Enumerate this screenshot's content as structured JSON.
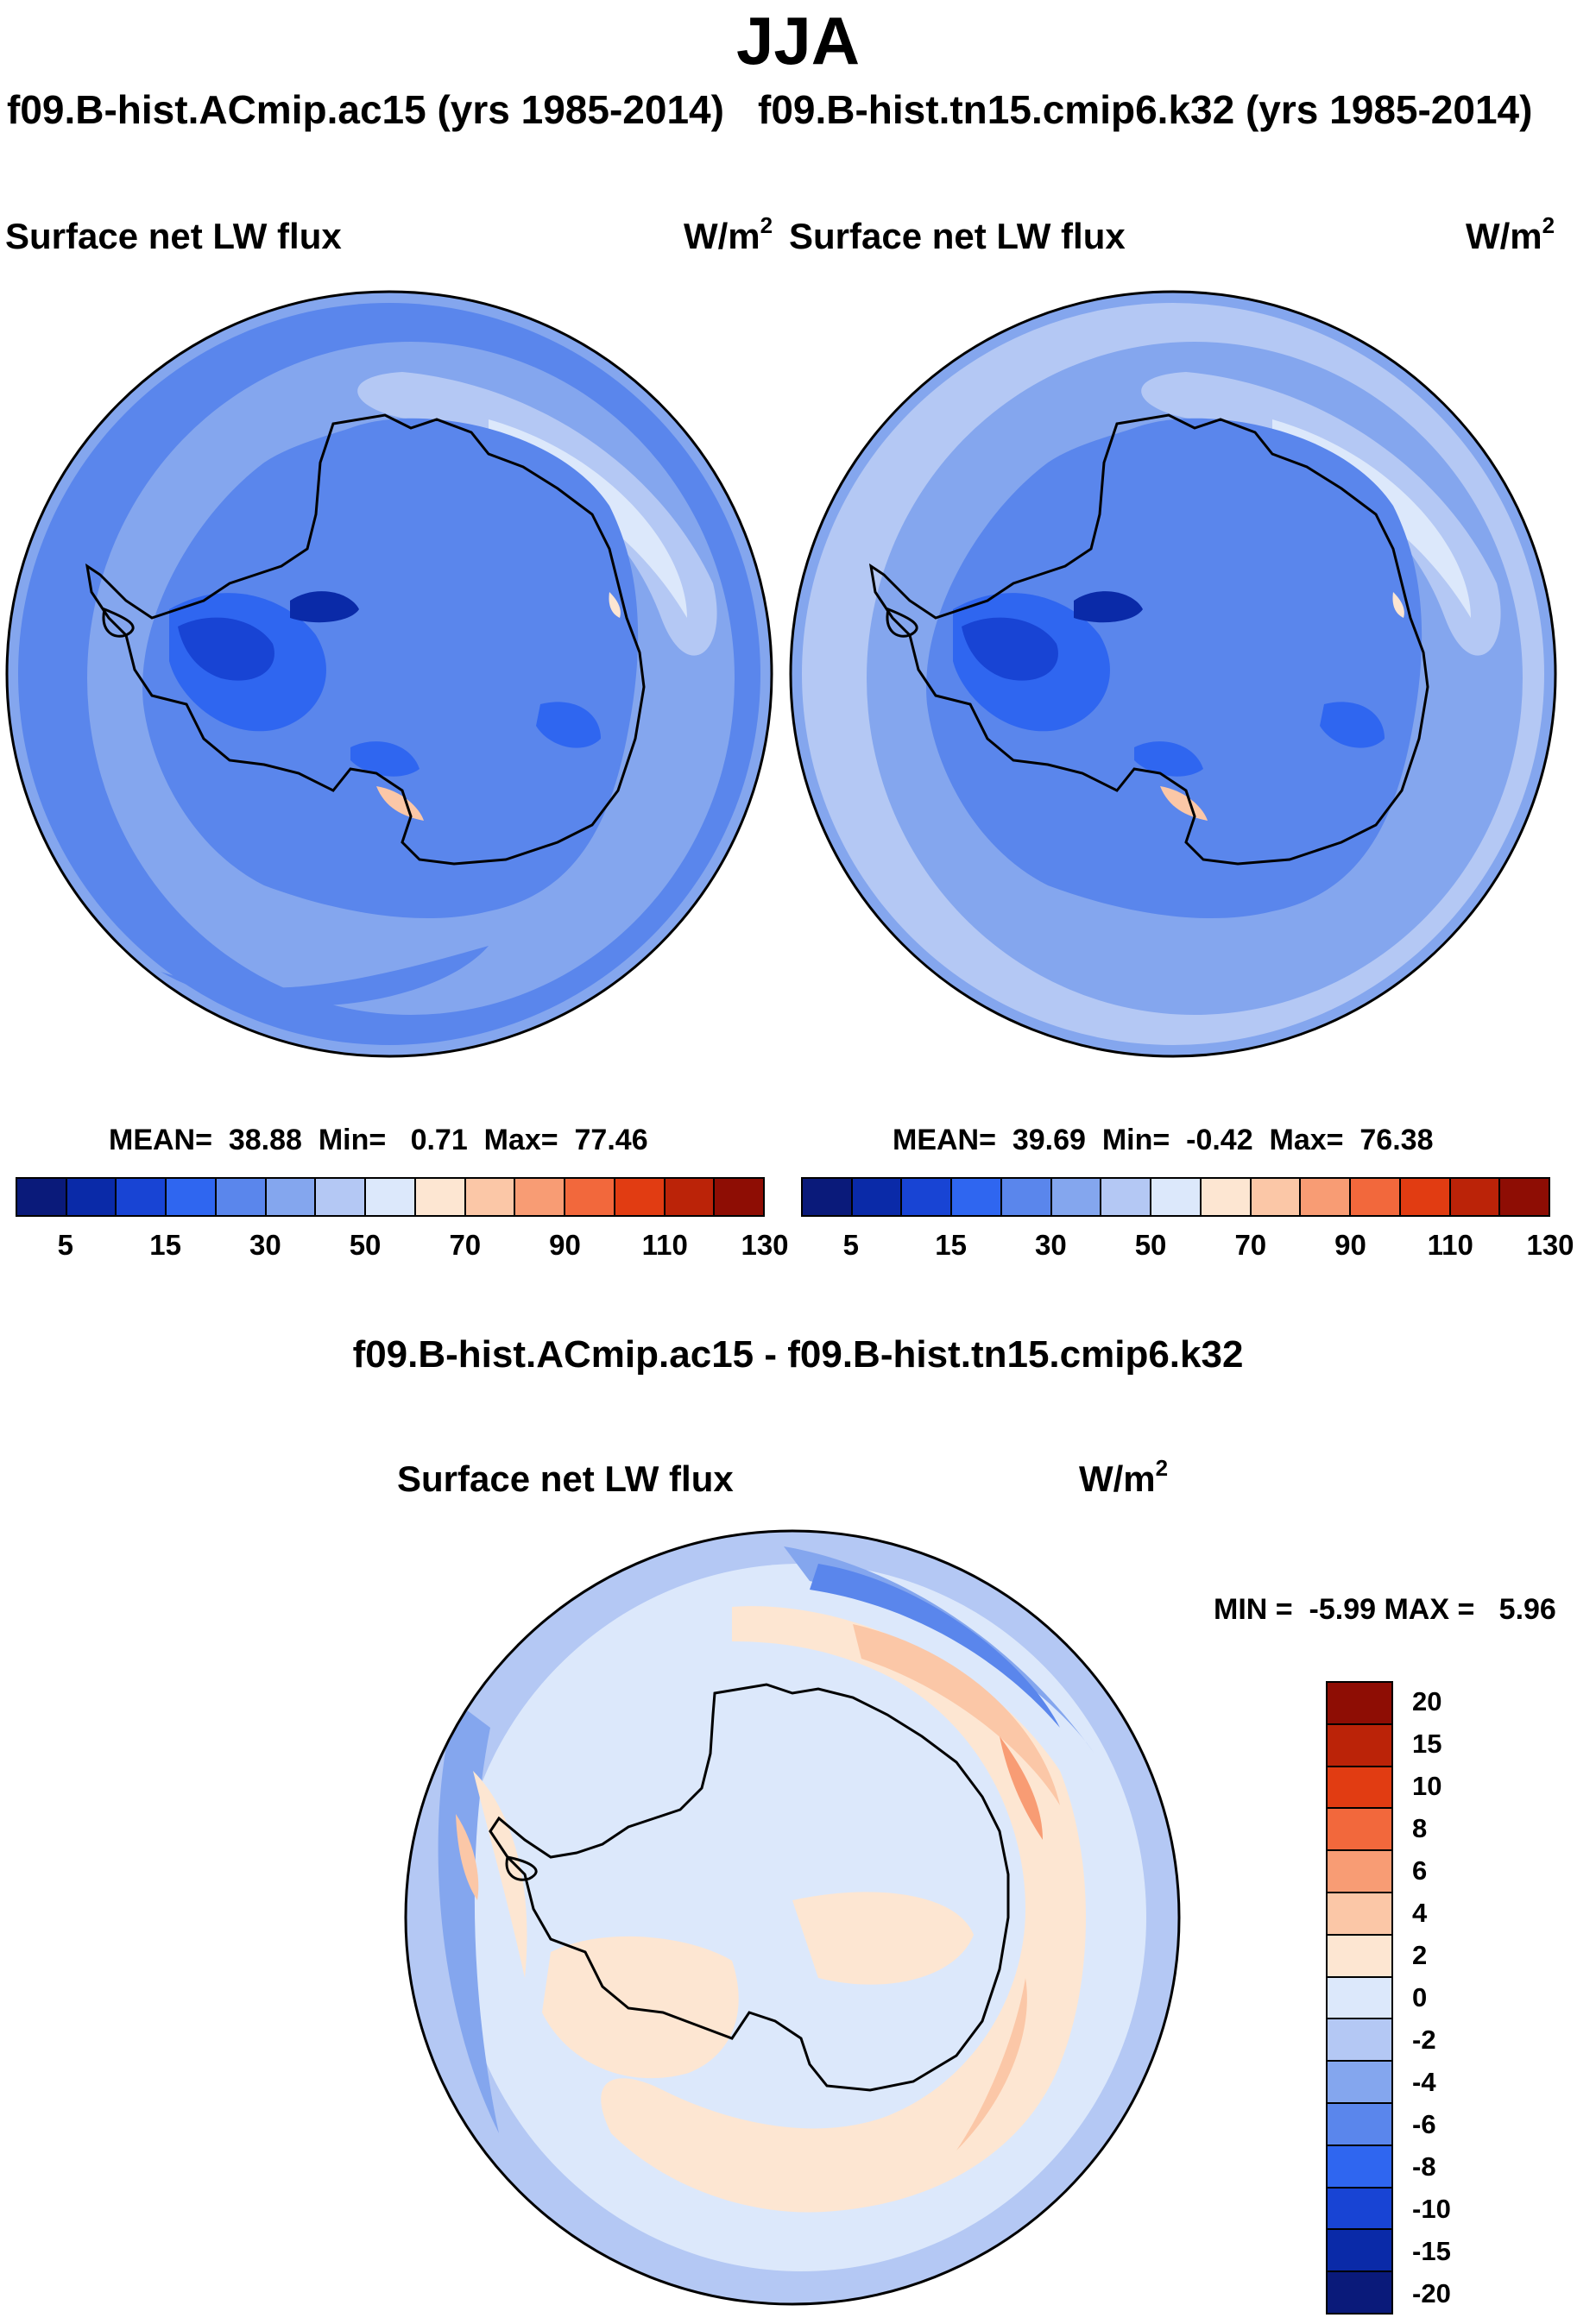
{
  "title": "JJA",
  "panels": [
    {
      "case": "f09.B-hist.ACmip.ac15 (yrs 1985-2014)",
      "variable": "Surface net LW flux",
      "units": "W/m",
      "units_exp": "2",
      "stats": "MEAN=  38.88  Min=   0.71  Max=  77.46",
      "map_name": "antarctic-lw-flux-map-ac15"
    },
    {
      "case": "f09.B-hist.tn15.cmip6.k32 (yrs 1985-2014)",
      "variable": "Surface net LW flux",
      "units": "W/m",
      "units_exp": "2",
      "stats": "MEAN=  39.69  Min=  -0.42  Max=  76.38",
      "map_name": "antarctic-lw-flux-map-k32"
    }
  ],
  "field_colorbar": {
    "colors": [
      "#0a1a7a",
      "#0a2aa8",
      "#1844d4",
      "#2f66f0",
      "#5a86ec",
      "#84a6ee",
      "#b4c8f4",
      "#dce8fb",
      "#fde6d2",
      "#fbc7a7",
      "#f89c74",
      "#f2683c",
      "#e13c12",
      "#bb2308",
      "#8e0d04"
    ],
    "labels": [
      "5",
      "15",
      "30",
      "50",
      "70",
      "90",
      "110",
      "130"
    ]
  },
  "difference": {
    "title": "f09.B-hist.ACmip.ac15 - f09.B-hist.tn15.cmip6.k32",
    "variable": "Surface net LW flux",
    "units": "W/m",
    "units_exp": "2",
    "stats": "MIN =  -5.99 MAX =   5.96",
    "colorbar": {
      "colors": [
        "#8e0d04",
        "#bb2308",
        "#e13c12",
        "#f2683c",
        "#f89c74",
        "#fbc7a7",
        "#fde6d2",
        "#dce8fb",
        "#b4c8f4",
        "#84a6ee",
        "#5a86ec",
        "#2f66f0",
        "#1844d4",
        "#0a2aa8",
        "#0a1a7a"
      ],
      "labels": [
        "20",
        "15",
        "10",
        "8",
        "6",
        "4",
        "2",
        "0",
        "-2",
        "-4",
        "-6",
        "-8",
        "-10",
        "-15",
        "-20"
      ]
    }
  }
}
